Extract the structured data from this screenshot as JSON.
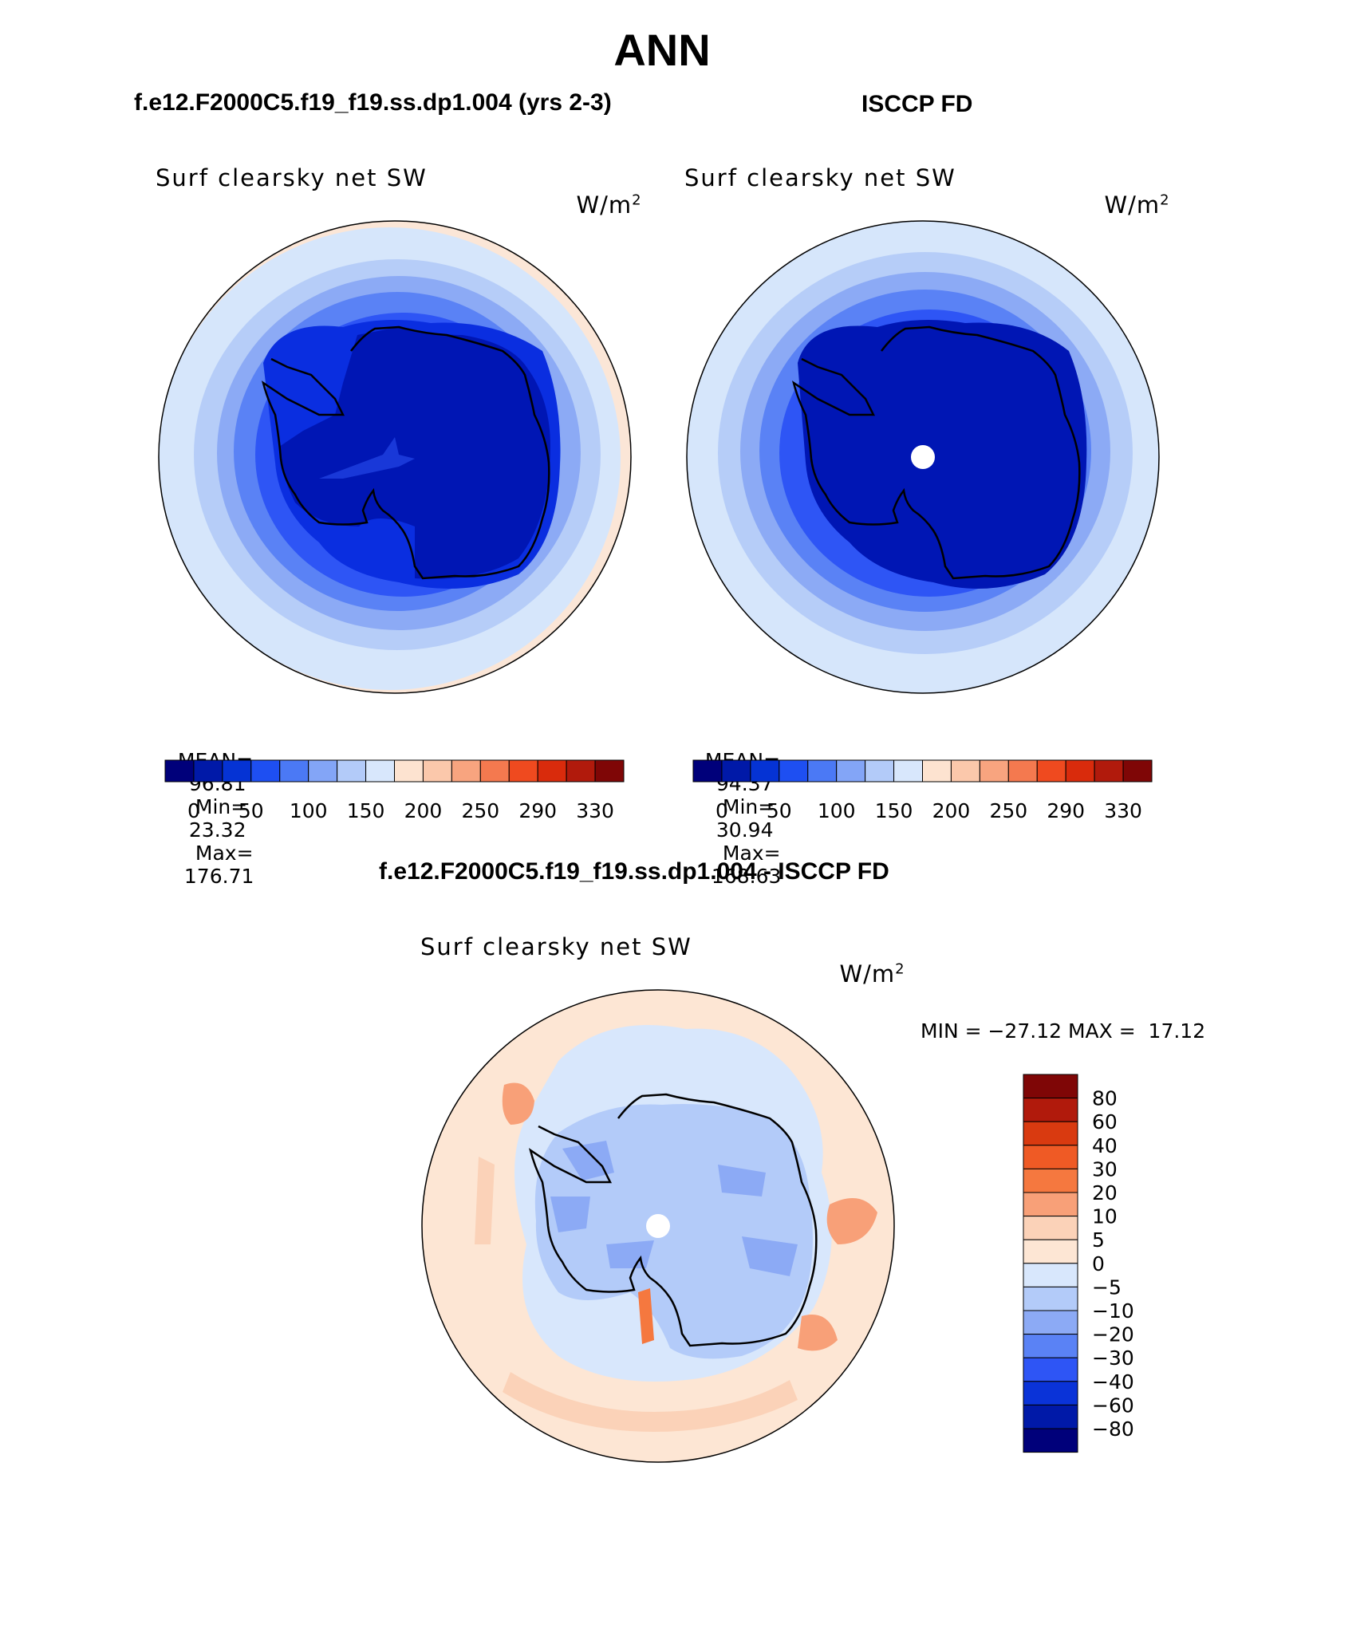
{
  "page_title": "ANN",
  "panels": [
    {
      "header": "f.e12.F2000C5.f19_f19.ss.dp1.004 (yrs 2-3)",
      "variable": "Surf clearsky net SW",
      "units": "W/m",
      "units_exp": "2",
      "stats": {
        "mean_label": "MEAN=",
        "mean": "96.81",
        "min_label": "Min=",
        "min": "23.32",
        "max_label": "Max=",
        "max": "176.71"
      },
      "fill_levels": [
        "#0a0a8c",
        "#0016b4",
        "#0a2ee0",
        "#2e55f5",
        "#5a82f5",
        "#8caaf5",
        "#b6cdf8",
        "#d6e6fb"
      ]
    },
    {
      "header": "ISCCP FD",
      "variable": "Surf clearsky net SW",
      "units": "W/m",
      "units_exp": "2",
      "stats": {
        "mean_label": "MEAN=",
        "mean": "94.37",
        "min_label": "Min=",
        "min": "30.94",
        "max_label": "Max=",
        "max": "168.63"
      },
      "fill_levels": [
        "#0a0a8c",
        "#0016b4",
        "#0a2ee0",
        "#2e55f5",
        "#5a82f5",
        "#8caaf5",
        "#b6cdf8",
        "#d6e6fb"
      ]
    }
  ],
  "colorbar_h": {
    "colors": [
      "#00007a",
      "#0019a8",
      "#0533d4",
      "#1e4ff2",
      "#4b79f5",
      "#83a5f7",
      "#b3cbf9",
      "#d8e7fc",
      "#fde3d0",
      "#fbc8ab",
      "#f8a47f",
      "#f4794f",
      "#ef4a1f",
      "#d92b0c",
      "#b11a0c",
      "#7f0606"
    ],
    "labels": [
      "0",
      "50",
      "100",
      "150",
      "200",
      "250",
      "290",
      "330"
    ]
  },
  "diff": {
    "header": "f.e12.F2000C5.f19_f19.ss.dp1.004 - ISCCP FD",
    "variable": "Surf clearsky net SW",
    "units": "W/m",
    "units_exp": "2",
    "minmax_text": "MIN = −27.12 MAX =  17.12"
  },
  "colorbar_v": {
    "colors": [
      "#7f0606",
      "#b11a0c",
      "#d93a10",
      "#ef5a25",
      "#f5783f",
      "#f8a078",
      "#fbd2b8",
      "#fde6d4",
      "#d8e7fc",
      "#b3cbf9",
      "#8caaf5",
      "#5a82f5",
      "#2e55f5",
      "#0a33d8",
      "#0019a8",
      "#00007a"
    ],
    "labels": [
      "80",
      "60",
      "40",
      "30",
      "20",
      "10",
      "5",
      "0",
      "−5",
      "−10",
      "−20",
      "−30",
      "−40",
      "−60",
      "−80"
    ]
  },
  "chart_data": [
    {
      "type": "heatmap",
      "title": "Surf clearsky net SW",
      "subtitle": "f.e12.F2000C5.f19_f19.ss.dp1.004 (yrs 2-3)",
      "units": "W/m2",
      "projection": "south polar stereographic",
      "mean": 96.81,
      "min": 23.32,
      "max": 176.71,
      "levels": [
        0,
        25,
        50,
        75,
        100,
        125,
        150,
        175,
        200,
        225,
        250,
        270,
        290,
        310,
        330
      ]
    },
    {
      "type": "heatmap",
      "title": "Surf clearsky net SW",
      "subtitle": "ISCCP FD",
      "units": "W/m2",
      "projection": "south polar stereographic",
      "mean": 94.37,
      "min": 30.94,
      "max": 168.63,
      "levels": [
        0,
        25,
        50,
        75,
        100,
        125,
        150,
        175,
        200,
        225,
        250,
        270,
        290,
        310,
        330
      ]
    },
    {
      "type": "heatmap",
      "title": "Surf clearsky net SW",
      "subtitle": "f.e12.F2000C5.f19_f19.ss.dp1.004 - ISCCP FD",
      "units": "W/m2",
      "projection": "south polar stereographic",
      "min": -27.12,
      "max": 17.12,
      "levels": [
        -80,
        -60,
        -40,
        -30,
        -20,
        -10,
        -5,
        0,
        5,
        10,
        20,
        30,
        40,
        60,
        80
      ]
    }
  ]
}
